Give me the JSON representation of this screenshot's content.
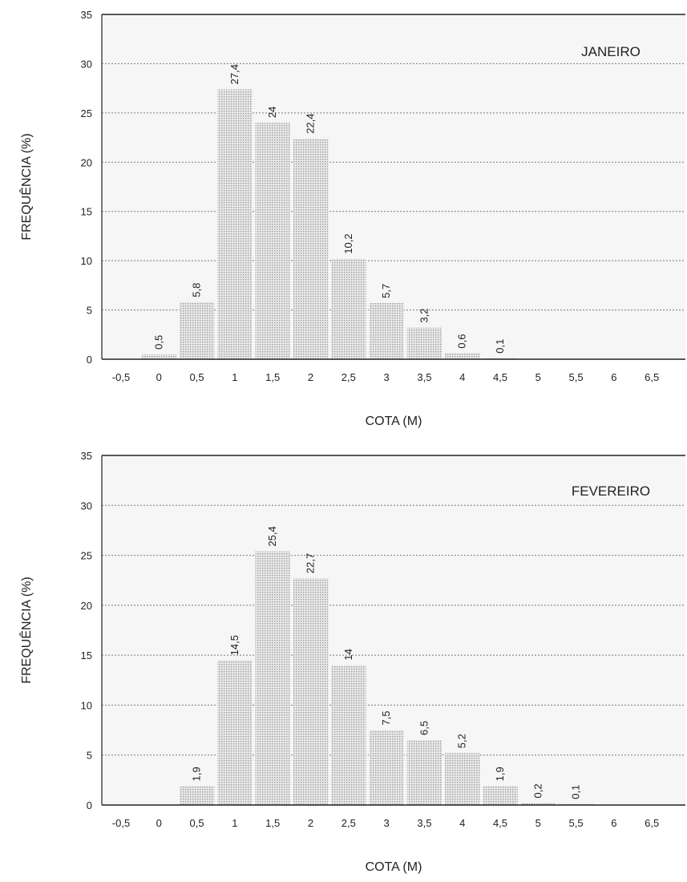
{
  "chart_data": [
    {
      "type": "bar",
      "annotation": "JANEIRO",
      "xlabel": "COTA (M)",
      "ylabel": "FREQUÊNCIA (%)",
      "x_ticks": [
        "-0,5",
        "0",
        "0,5",
        "1",
        "1,5",
        "2",
        "2,5",
        "3",
        "3,5",
        "4",
        "4,5",
        "5",
        "5,5",
        "6",
        "6,5"
      ],
      "y_ticks": [
        "0",
        "5",
        "10",
        "15",
        "20",
        "25",
        "30",
        "35"
      ],
      "ylim": [
        0,
        35
      ],
      "grid": true,
      "categories": [
        "0",
        "0,5",
        "1",
        "1,5",
        "2",
        "2,5",
        "3",
        "3,5",
        "4",
        "4,5"
      ],
      "values": [
        0.5,
        5.8,
        27.4,
        24,
        22.4,
        10.2,
        5.7,
        3.2,
        0.6,
        0.1
      ],
      "value_labels": [
        "0,5",
        "5,8",
        "27,4",
        "24",
        "22,4",
        "10,2",
        "5,7",
        "3,2",
        "0,6",
        "0,1"
      ]
    },
    {
      "type": "bar",
      "annotation": "FEVEREIRO",
      "xlabel": "COTA (M)",
      "ylabel": "FREQUÊNCIA (%)",
      "x_ticks": [
        "-0,5",
        "0",
        "0,5",
        "1",
        "1,5",
        "2",
        "2,5",
        "3",
        "3,5",
        "4",
        "4,5",
        "5",
        "5,5",
        "6",
        "6,5"
      ],
      "y_ticks": [
        "0",
        "5",
        "10",
        "15",
        "20",
        "25",
        "30",
        "35"
      ],
      "ylim": [
        0,
        35
      ],
      "grid": true,
      "categories": [
        "0,5",
        "1",
        "1,5",
        "2",
        "2,5",
        "3",
        "3,5",
        "4",
        "4,5",
        "5",
        "5,5"
      ],
      "values": [
        1.9,
        14.5,
        25.4,
        22.7,
        14,
        7.5,
        6.5,
        5.2,
        1.9,
        0.2,
        0.1
      ],
      "value_labels": [
        "1,9",
        "14,5",
        "25,4",
        "22,7",
        "14",
        "7,5",
        "6,5",
        "5,2",
        "1,9",
        "0,2",
        "0,1"
      ]
    }
  ]
}
